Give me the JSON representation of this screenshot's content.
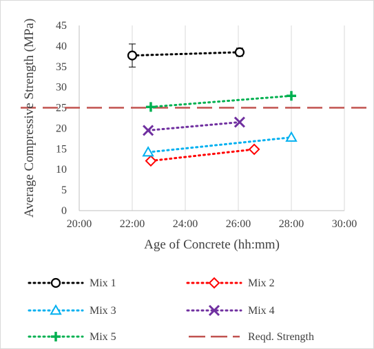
{
  "chart_data": {
    "type": "scatter",
    "xlabel": "Age of Concrete (hh:mm)",
    "ylabel": "Average Compressive Strength (MPa)",
    "xlim": [
      20,
      30
    ],
    "ylim": [
      0,
      45
    ],
    "x_ticks": [
      "20:00",
      "22:00",
      "24:00",
      "26:00",
      "28:00",
      "30:00"
    ],
    "y_ticks": [
      "0",
      "5",
      "10",
      "15",
      "20",
      "25",
      "30",
      "35",
      "40",
      "45"
    ],
    "grid": "vertical",
    "legend_position": "bottom",
    "series": [
      {
        "name": "Mix 1",
        "marker": "circle",
        "color": "#000000",
        "points": [
          [
            22.0,
            37.7
          ],
          [
            26.05,
            38.5
          ]
        ],
        "error_bars": [
          2.8,
          1.0
        ]
      },
      {
        "name": "Mix 2",
        "marker": "diamond",
        "color": "#ff0000",
        "points": [
          [
            22.7,
            12.1
          ],
          [
            26.6,
            14.9
          ]
        ]
      },
      {
        "name": "Mix 3",
        "marker": "triangle",
        "color": "#00b0f0",
        "points": [
          [
            22.6,
            14.2
          ],
          [
            28.0,
            17.8
          ]
        ]
      },
      {
        "name": "Mix 4",
        "marker": "x",
        "color": "#7030a0",
        "points": [
          [
            22.6,
            19.5
          ],
          [
            26.05,
            21.5
          ]
        ]
      },
      {
        "name": "Mix 5",
        "marker": "plus",
        "color": "#00b050",
        "points": [
          [
            22.7,
            25.2
          ],
          [
            28.0,
            27.9
          ]
        ]
      }
    ],
    "reference_line": {
      "name": "Reqd. Strength",
      "value": 25,
      "color": "#c0504d"
    }
  }
}
